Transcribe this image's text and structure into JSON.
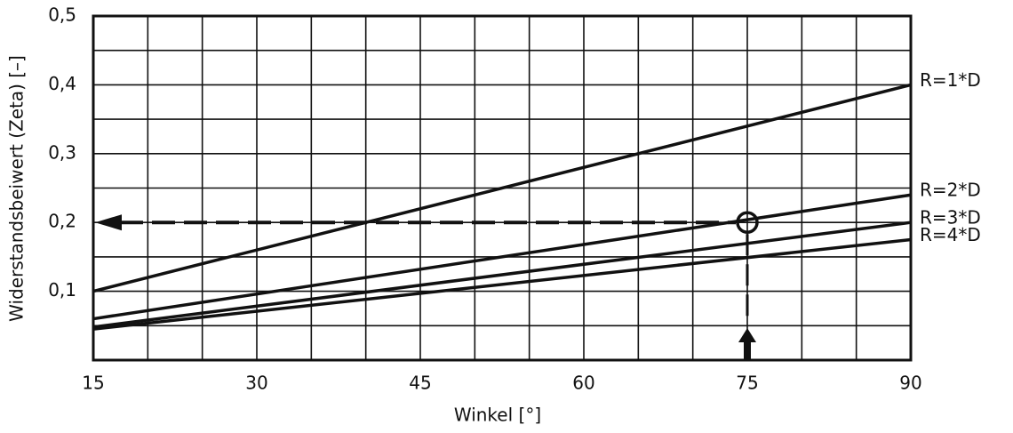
{
  "chart_data": {
    "type": "line",
    "x_label": "Winkel [°]",
    "y_label": "Widerstandsbeiwert (Zeta) [–]",
    "xlim": [
      15,
      90
    ],
    "ylim": [
      0,
      0.5
    ],
    "xticks": [
      15,
      30,
      45,
      60,
      75,
      90
    ],
    "yticks": [
      {
        "value": 0.1,
        "label": "0,1"
      },
      {
        "value": 0.2,
        "label": "0,2"
      },
      {
        "value": 0.3,
        "label": "0,3"
      },
      {
        "value": 0.4,
        "label": "0,4"
      },
      {
        "value": 0.5,
        "label": "0,5"
      }
    ],
    "xgrid": [
      15,
      20,
      25,
      30,
      35,
      40,
      45,
      50,
      55,
      60,
      65,
      70,
      75,
      80,
      85,
      90
    ],
    "ygrid": [
      0,
      0.05,
      0.1,
      0.15,
      0.2,
      0.25,
      0.3,
      0.35,
      0.4,
      0.45,
      0.5
    ],
    "grid": true,
    "series": [
      {
        "name": "R=1*D",
        "color": "#111111",
        "x": [
          15,
          90
        ],
        "values": [
          0.1,
          0.4
        ]
      },
      {
        "name": "R=2*D",
        "color": "#111111",
        "x": [
          15,
          90
        ],
        "values": [
          0.06,
          0.24
        ]
      },
      {
        "name": "R=3*D",
        "color": "#111111",
        "x": [
          15,
          90
        ],
        "values": [
          0.048,
          0.2
        ]
      },
      {
        "name": "R=4*D",
        "color": "#111111",
        "x": [
          15,
          90
        ],
        "values": [
          0.045,
          0.175
        ]
      }
    ],
    "marker": {
      "x": 75,
      "y": 0.2
    }
  }
}
